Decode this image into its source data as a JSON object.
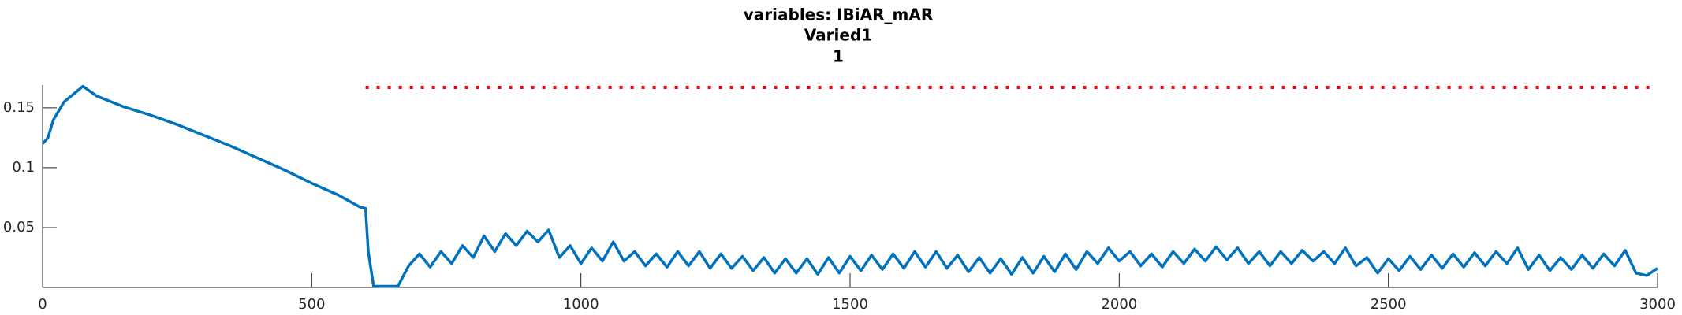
{
  "chart_data": {
    "type": "line",
    "title": "variables: IBiAR_mAR",
    "subtitle": [
      "Varied1",
      "1"
    ],
    "xlim": [
      0,
      3000
    ],
    "xticks": [
      0,
      500,
      1000,
      1500,
      2000,
      2500,
      3000
    ],
    "ylim": [
      0,
      0.169
    ],
    "yticks": [
      0.05,
      0.1,
      0.15
    ],
    "series": [
      {
        "color": "#0072bd",
        "linestyle": "solid",
        "x": [
          0,
          10,
          20,
          40,
          75,
          100,
          150,
          200,
          250,
          300,
          350,
          400,
          450,
          500,
          550,
          590,
          600,
          605,
          615,
          660,
          680,
          700,
          720,
          740,
          760,
          780,
          800,
          820,
          840,
          860,
          880,
          900,
          920,
          940,
          960,
          980,
          1000,
          1020,
          1040,
          1060,
          1080,
          1100,
          1120,
          1140,
          1160,
          1180,
          1200,
          1220,
          1240,
          1260,
          1280,
          1300,
          1320,
          1340,
          1360,
          1380,
          1400,
          1420,
          1440,
          1460,
          1480,
          1500,
          1520,
          1540,
          1560,
          1580,
          1600,
          1620,
          1640,
          1660,
          1680,
          1700,
          1720,
          1740,
          1760,
          1780,
          1800,
          1820,
          1840,
          1860,
          1880,
          1900,
          1920,
          1940,
          1960,
          1980,
          2000,
          2020,
          2040,
          2060,
          2080,
          2100,
          2120,
          2140,
          2160,
          2180,
          2200,
          2220,
          2240,
          2260,
          2280,
          2300,
          2320,
          2340,
          2360,
          2380,
          2400,
          2420,
          2440,
          2460,
          2480,
          2500,
          2520,
          2540,
          2560,
          2580,
          2600,
          2620,
          2640,
          2660,
          2680,
          2700,
          2720,
          2740,
          2760,
          2780,
          2800,
          2820,
          2840,
          2860,
          2880,
          2900,
          2920,
          2940,
          2960,
          2980,
          3000
        ],
        "values": [
          0.12,
          0.125,
          0.14,
          0.155,
          0.168,
          0.16,
          0.151,
          0.144,
          0.136,
          0.127,
          0.118,
          0.108,
          0.098,
          0.087,
          0.077,
          0.067,
          0.066,
          0.03,
          0.001,
          0.001,
          0.018,
          0.028,
          0.017,
          0.03,
          0.02,
          0.035,
          0.025,
          0.043,
          0.03,
          0.045,
          0.035,
          0.047,
          0.038,
          0.048,
          0.025,
          0.035,
          0.02,
          0.033,
          0.022,
          0.038,
          0.022,
          0.03,
          0.018,
          0.028,
          0.017,
          0.03,
          0.018,
          0.03,
          0.016,
          0.028,
          0.016,
          0.026,
          0.014,
          0.025,
          0.012,
          0.024,
          0.012,
          0.024,
          0.011,
          0.025,
          0.012,
          0.026,
          0.014,
          0.027,
          0.015,
          0.028,
          0.016,
          0.03,
          0.017,
          0.03,
          0.016,
          0.027,
          0.013,
          0.025,
          0.012,
          0.024,
          0.011,
          0.025,
          0.012,
          0.026,
          0.013,
          0.028,
          0.015,
          0.03,
          0.02,
          0.033,
          0.022,
          0.03,
          0.018,
          0.028,
          0.017,
          0.03,
          0.02,
          0.032,
          0.022,
          0.034,
          0.023,
          0.033,
          0.02,
          0.03,
          0.018,
          0.03,
          0.02,
          0.031,
          0.022,
          0.03,
          0.02,
          0.033,
          0.018,
          0.025,
          0.012,
          0.024,
          0.014,
          0.026,
          0.015,
          0.027,
          0.016,
          0.028,
          0.017,
          0.029,
          0.018,
          0.03,
          0.02,
          0.033,
          0.015,
          0.027,
          0.014,
          0.025,
          0.015,
          0.027,
          0.016,
          0.028,
          0.018,
          0.031,
          0.012,
          0.01,
          0.016
        ]
      },
      {
        "color": "#ff0000",
        "linestyle": "dotted",
        "x": [
          600,
          2990
        ],
        "values": [
          0.167,
          0.167
        ]
      }
    ]
  }
}
